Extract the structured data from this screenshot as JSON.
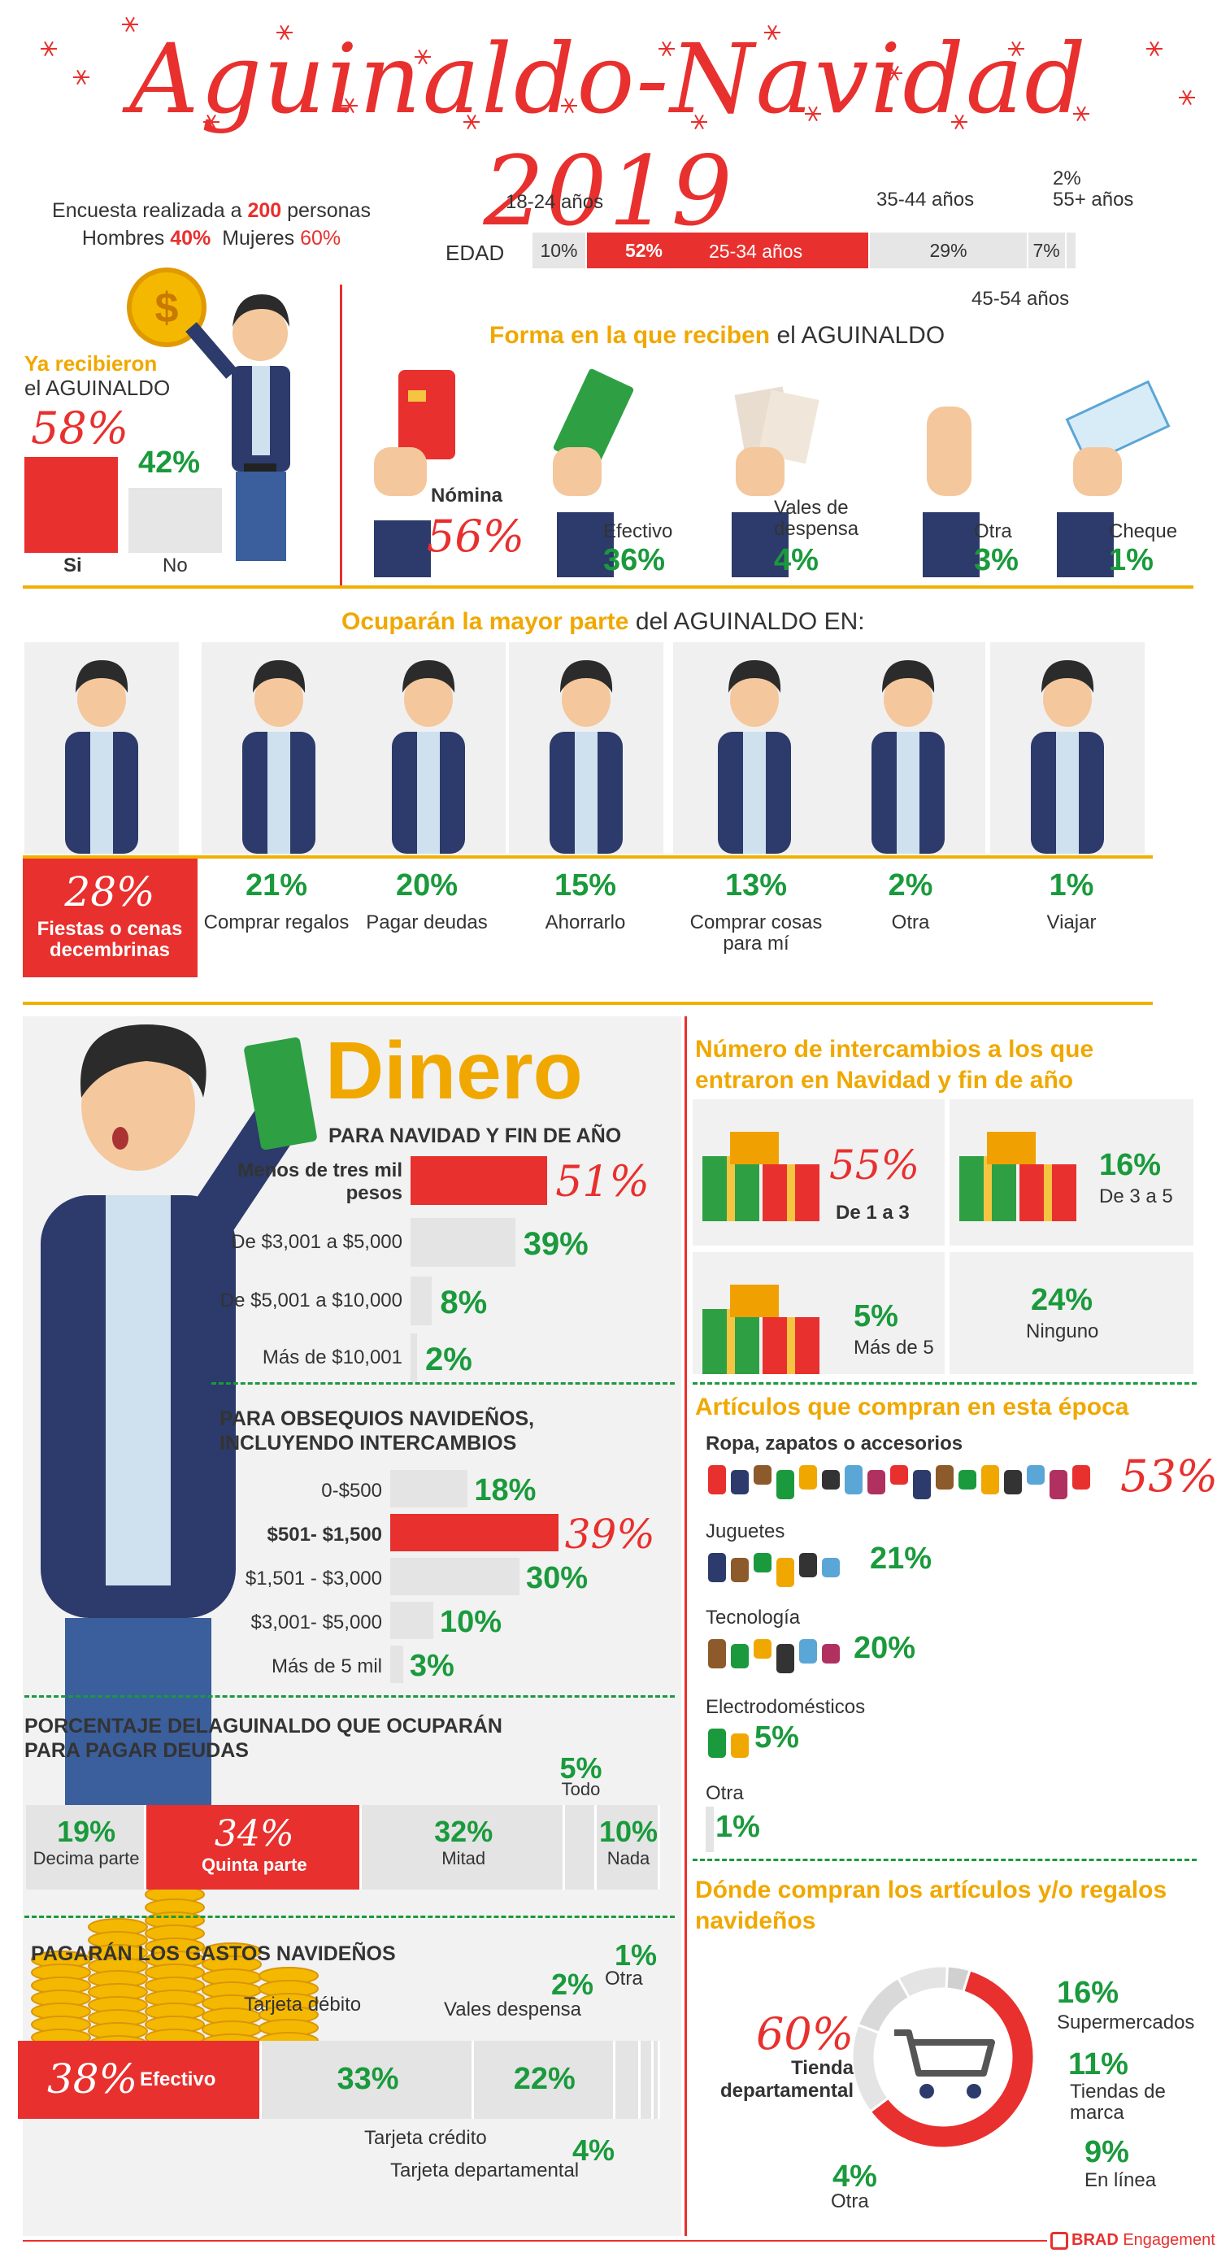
{
  "title": "Aguinaldo-Navidad 2019",
  "survey": {
    "line1_pre": "Encuesta realizada a ",
    "line1_num": "200",
    "line1_post": " personas",
    "men_label": "Hombres ",
    "men_pct": "40%",
    "women_label": "Mujeres ",
    "women_pct": "60%"
  },
  "edad": {
    "label": "EDAD",
    "segments": [
      {
        "label": "18-24 años",
        "pct": "10%",
        "value": 10
      },
      {
        "label": "25-34 años",
        "pct": "52%",
        "value": 52
      },
      {
        "label": "35-44 años",
        "pct": "29%",
        "value": 29
      },
      {
        "label": "45-54 años",
        "pct": "7%",
        "value": 7
      },
      {
        "label": "55+ años",
        "pct": "2%",
        "value": 2
      }
    ]
  },
  "recibieron": {
    "title1": "Ya recibieron",
    "title2": "el AGUINALDO",
    "si_pct": "58%",
    "si_label": "Si",
    "si_value": 58,
    "no_pct": "42%",
    "no_label": "No",
    "no_value": 42
  },
  "forma": {
    "title_highlight": "Forma en la que reciben ",
    "title_rest": "el AGUINALDO",
    "items": [
      {
        "label": "Nómina",
        "pct": "56%"
      },
      {
        "label": "Efectivo",
        "pct": "36%"
      },
      {
        "label": "Vales de despensa",
        "pct": "4%"
      },
      {
        "label": "Otra",
        "pct": "3%"
      },
      {
        "label": "Cheque",
        "pct": "1%"
      }
    ]
  },
  "ocuparan": {
    "title_highlight": "Ocuparán la mayor parte ",
    "title_rest": "del AGUINALDO EN:",
    "items": [
      {
        "pct": "28%",
        "label": "Fiestas o cenas decembrinas"
      },
      {
        "pct": "21%",
        "label": "Comprar regalos"
      },
      {
        "pct": "20%",
        "label": "Pagar deudas"
      },
      {
        "pct": "15%",
        "label": "Ahorrarlo"
      },
      {
        "pct": "13%",
        "label": "Comprar cosas para mí"
      },
      {
        "pct": "2%",
        "label": "Otra"
      },
      {
        "pct": "1%",
        "label": "Viajar"
      }
    ]
  },
  "dinero": {
    "title": "Dinero",
    "subtitle": "PARA NAVIDAD Y FIN DE AÑO",
    "rows": [
      {
        "label": "Menos de tres mil pesos",
        "pct": "51%",
        "value": 51
      },
      {
        "label": "De $3,001 a $5,000",
        "pct": "39%",
        "value": 39
      },
      {
        "label": "De $5,001 a $10,000",
        "pct": "8%",
        "value": 8
      },
      {
        "label": "Más de $10,001",
        "pct": "2%",
        "value": 2
      }
    ]
  },
  "obsequios": {
    "title": "PARA OBSEQUIOS NAVIDEÑOS, INCLUYENDO INTERCAMBIOS",
    "rows": [
      {
        "label": "0-$500",
        "pct": "18%",
        "value": 18
      },
      {
        "label": "$501- $1,500",
        "pct": "39%",
        "value": 39
      },
      {
        "label": "$1,501 - $3,000",
        "pct": "30%",
        "value": 30
      },
      {
        "label": "$3,001- $5,000",
        "pct": "10%",
        "value": 10
      },
      {
        "label": "Más de 5 mil",
        "pct": "3%",
        "value": 3
      }
    ]
  },
  "deudas": {
    "title": "PORCENTAJE DELAGUINALDO QUE OCUPARÁN PARA PAGAR DEUDAS",
    "segments": [
      {
        "pct": "19%",
        "label": "Decima parte",
        "value": 19
      },
      {
        "pct": "34%",
        "label": "Quinta parte",
        "value": 34
      },
      {
        "pct": "32%",
        "label": "Mitad",
        "value": 32
      },
      {
        "pct": "5%",
        "label": "Todo",
        "value": 5
      },
      {
        "pct": "10%",
        "label": "Nada",
        "value": 10
      }
    ]
  },
  "gastos": {
    "title": "PAGARÁN LOS GASTOS NAVIDEÑOS",
    "segments": [
      {
        "pct": "38%",
        "label": "Efectivo",
        "value": 38
      },
      {
        "pct": "33%",
        "label": "Tarjeta débito",
        "value": 33
      },
      {
        "pct": "22%",
        "label": "Tarjeta crédito",
        "value": 22
      },
      {
        "pct": "4%",
        "label": "Tarjeta departamental",
        "value": 4
      },
      {
        "pct": "2%",
        "label": "Vales despensa",
        "value": 2
      },
      {
        "pct": "1%",
        "label": "Otra",
        "value": 1
      }
    ]
  },
  "intercambios": {
    "title": "Número de intercambios a los que entraron en Navidad y fin de año",
    "items": [
      {
        "pct": "55%",
        "label": "De 1 a 3"
      },
      {
        "pct": "16%",
        "label": "De 3 a 5"
      },
      {
        "pct": "5%",
        "label": "Más de 5"
      },
      {
        "pct": "24%",
        "label": "Ninguno"
      }
    ]
  },
  "articulos": {
    "title": "Artículos que compran en esta época",
    "items": [
      {
        "label": "Ropa, zapatos o accesorios",
        "pct": "53%"
      },
      {
        "label": "Juguetes",
        "pct": "21%"
      },
      {
        "label": "Tecnología",
        "pct": "20%"
      },
      {
        "label": "Electrodomésticos",
        "pct": "5%"
      },
      {
        "label": "Otra",
        "pct": "1%"
      }
    ]
  },
  "donde": {
    "title": "Dónde compran los artículos y/o regalos navideños",
    "items": [
      {
        "pct": "60%",
        "label": "Tienda departamental",
        "value": 60
      },
      {
        "pct": "16%",
        "label": "Supermercados",
        "value": 16
      },
      {
        "pct": "11%",
        "label": "Tiendas de marca",
        "value": 11
      },
      {
        "pct": "9%",
        "label": "En línea",
        "value": 9
      },
      {
        "pct": "4%",
        "label": "Otra",
        "value": 4
      }
    ]
  },
  "brand": {
    "name1": "BRAD",
    "name2": " Engagement"
  },
  "colors": {
    "red": "#e8302e",
    "green": "#1a9a3c",
    "gold": "#f0a800",
    "gray": "#e6e6e6"
  }
}
